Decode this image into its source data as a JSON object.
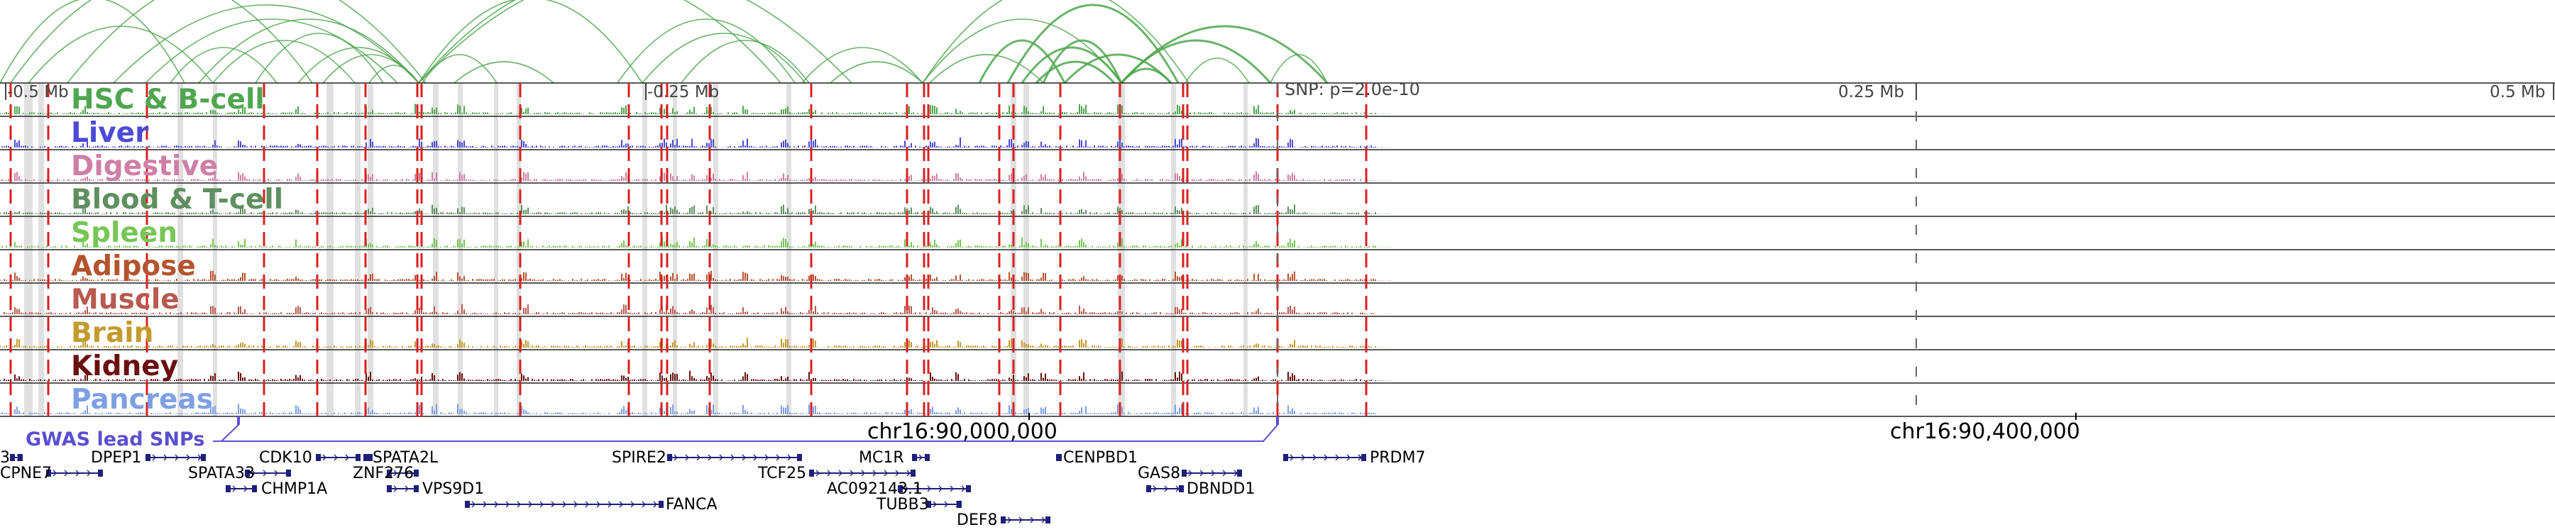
{
  "tracks": [
    {
      "key": "hsc",
      "name": "HSC & B-cell",
      "color": "#4fa64f"
    },
    {
      "key": "liver",
      "name": "Liver",
      "color": "#4b4bd6"
    },
    {
      "key": "digestive",
      "name": "Digestive",
      "color": "#cf7fa6"
    },
    {
      "key": "blood",
      "name": "Blood & T-cell",
      "color": "#5f8f5f"
    },
    {
      "key": "spleen",
      "name": "Spleen",
      "color": "#77c656"
    },
    {
      "key": "adipose",
      "name": "Adipose",
      "color": "#b5532f"
    },
    {
      "key": "muscle",
      "name": "Muscle",
      "color": "#b85a50"
    },
    {
      "key": "brain",
      "name": "Brain",
      "color": "#c49a2c"
    },
    {
      "key": "kidney",
      "name": "Kidney",
      "color": "#6a0f0f"
    },
    {
      "key": "pancreas",
      "name": "Pancreas",
      "color": "#7ea0e3"
    }
  ],
  "scale": {
    "ticks": [
      {
        "label": "-0.5 Mb"
      },
      {
        "label": "-0.25 Mb"
      },
      {
        "label": "0.25 Mb"
      },
      {
        "label": "0.5 Mb"
      }
    ],
    "snp_label": "SNP: p=2.0e-10"
  },
  "gwas": {
    "label": "GWAS lead SNPs"
  },
  "coordinates": [
    {
      "label": "chr16:90,000,000"
    },
    {
      "label": "chr16:90,400,000"
    }
  ],
  "genes": [
    {
      "label": "3"
    },
    {
      "label": "CPNE7"
    },
    {
      "label": "DPEP1"
    },
    {
      "label": "CDK10"
    },
    {
      "label": "SPATA2L"
    },
    {
      "label": "SPATA33"
    },
    {
      "label": "CHMP1A"
    },
    {
      "label": "ZNF276"
    },
    {
      "label": "VPS9D1"
    },
    {
      "label": "FANCA"
    },
    {
      "label": "SPIRE2"
    },
    {
      "label": "TCF25"
    },
    {
      "label": "MC1R"
    },
    {
      "label": "AC092143.1"
    },
    {
      "label": "TUBB3"
    },
    {
      "label": "DEF8"
    },
    {
      "label": "CENPBD1"
    },
    {
      "label": "GAS8"
    },
    {
      "label": "DBNDD1"
    },
    {
      "label": "PRDM7"
    }
  ],
  "colors": {
    "arc": "#4fa64f",
    "highlight_line": "#d92020",
    "highlight_band": "#d8d8d8",
    "gene": "#1f1f7a",
    "gwas": "#5a4fcf"
  }
}
